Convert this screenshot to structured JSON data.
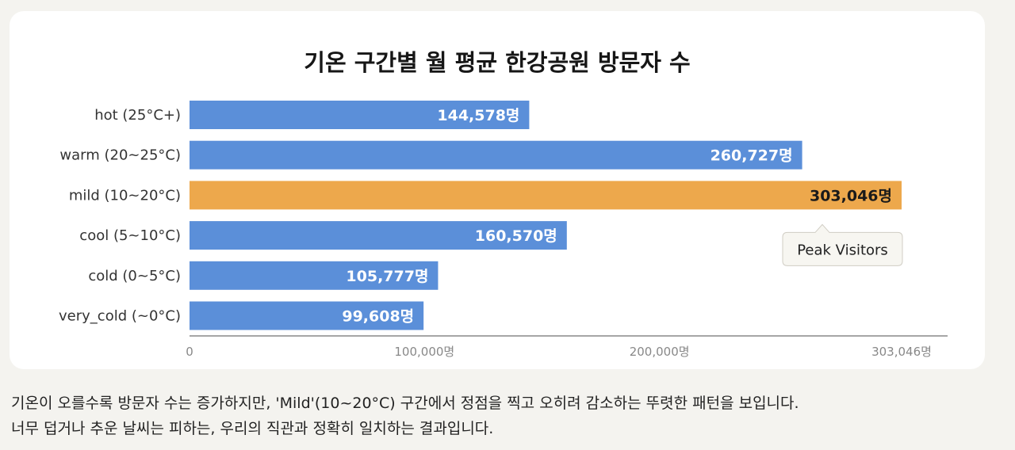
{
  "chart_data": {
    "type": "bar",
    "orientation": "horizontal",
    "title": "기온 구간별 월 평균 한강공원 방문자 수",
    "categories": [
      "hot (25°C+)",
      "warm (20~25°C)",
      "mild (10~20°C)",
      "cool (5~10°C)",
      "cold (0~5°C)",
      "very_cold (~0°C)"
    ],
    "values": [
      144578,
      260727,
      303046,
      160570,
      105777,
      99608
    ],
    "value_labels": [
      "144,578명",
      "260,727명",
      "303,046명",
      "160,570명",
      "105,777명",
      "99,608명"
    ],
    "highlight_index": 2,
    "xlim": [
      0,
      303046
    ],
    "x_ticks": [
      0,
      100000,
      200000,
      303046
    ],
    "x_tick_labels": [
      "0",
      "100,000명",
      "200,000명",
      "303,046명"
    ],
    "annotation": {
      "text": "Peak Visitors",
      "category": "mild (10~20°C)"
    },
    "grid": false,
    "legend": "none",
    "colors": {
      "bar": "#5b8fd9",
      "highlight": "#eda84c",
      "label_on_bar": "#ffffff",
      "label_on_highlight": "#1a1a1a",
      "axis": "#888888"
    }
  },
  "caption": {
    "line1": "기온이 오를수록 방문자 수는 증가하지만, 'Mild'(10~20°C) 구간에서 정점을 찍고 오히려 감소하는 뚜렷한 패턴을 보입니다.",
    "line2": "너무 덥거나 추운 날씨는 피하는, 우리의 직관과 정확히 일치하는 결과입니다."
  }
}
